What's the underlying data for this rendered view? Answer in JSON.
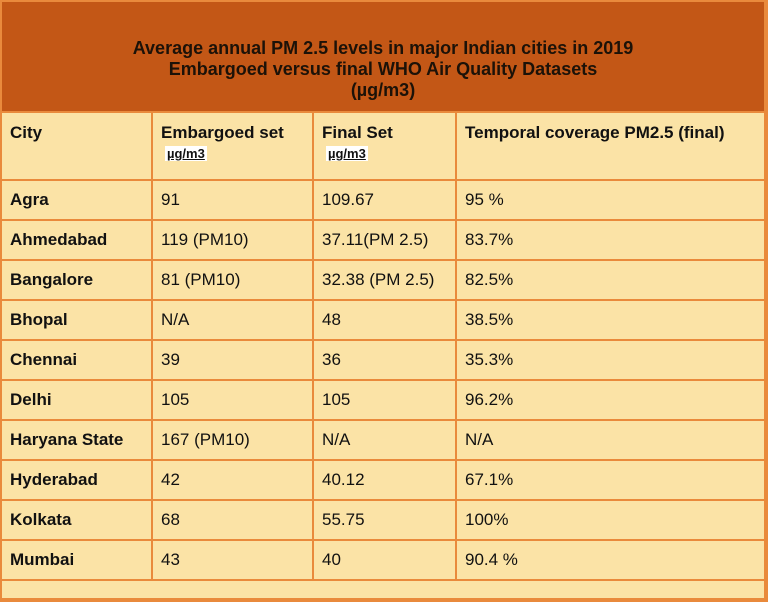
{
  "title": {
    "line1": "Average annual PM 2.5 levels in major Indian cities in 2019",
    "line2": "Embargoed versus final WHO Air Quality Datasets",
    "line3": "(µg/m3)"
  },
  "headers": {
    "city": "City",
    "embargoed": "Embargoed set",
    "embargoed_unit": "µg/m3",
    "final": "Final Set",
    "final_unit": "µg/m3",
    "coverage": "Temporal coverage PM2.5 (final)"
  },
  "rows": [
    {
      "city": "Agra",
      "embargoed": "91",
      "final": "109.67",
      "coverage": "95 %"
    },
    {
      "city": "Ahmedabad",
      "embargoed": "119 (PM10)",
      "final": "37.11(PM 2.5)",
      "coverage": "83.7%"
    },
    {
      "city": "Bangalore",
      "embargoed": "81 (PM10)",
      "final": "32.38 (PM 2.5)",
      "coverage": "82.5%"
    },
    {
      "city": "Bhopal",
      "embargoed": "N/A",
      "final": "48",
      "coverage": "38.5%"
    },
    {
      "city": "Chennai",
      "embargoed": "39",
      "final": "36",
      "coverage": "35.3%"
    },
    {
      "city": "Delhi",
      "embargoed": "105",
      "final": "105",
      "coverage": "96.2%"
    },
    {
      "city": "Haryana State",
      "embargoed": "167 (PM10)",
      "final": "N/A",
      "coverage": "N/A"
    },
    {
      "city": "Hyderabad",
      "embargoed": "42",
      "final": "40.12",
      "coverage": "67.1%"
    },
    {
      "city": "Kolkata",
      "embargoed": "68",
      "final": "55.75",
      "coverage": "100%"
    },
    {
      "city": "Mumbai",
      "embargoed": "43",
      "final": "40",
      "coverage": "90.4 %"
    }
  ]
}
